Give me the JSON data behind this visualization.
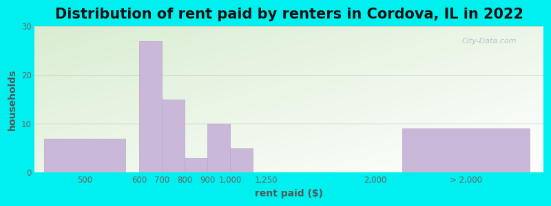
{
  "title": "Distribution of rent paid by renters in Cordova, IL in 2022",
  "xlabel": "rent paid ($)",
  "ylabel": "households",
  "categories": [
    "500",
    "600",
    "700",
    "800",
    "900",
    "1,000",
    "1,250",
    "2,000",
    "> 2,000"
  ],
  "values": [
    7,
    27,
    15,
    3,
    10,
    5,
    0,
    0,
    9
  ],
  "bar_color": "#c9b8d8",
  "bar_edgecolor": "#b8a8cc",
  "ylim": [
    0,
    30
  ],
  "yticks": [
    0,
    10,
    20,
    30
  ],
  "bg_color": "#00efef",
  "grad_color_topleft": "#d8ecd0",
  "grad_color_right": "#f5fff5",
  "grad_color_bottom": "#ffffff",
  "title_fontsize": 15,
  "axis_label_fontsize": 10,
  "tick_fontsize": 8.5,
  "watermark": "City-Data.com"
}
